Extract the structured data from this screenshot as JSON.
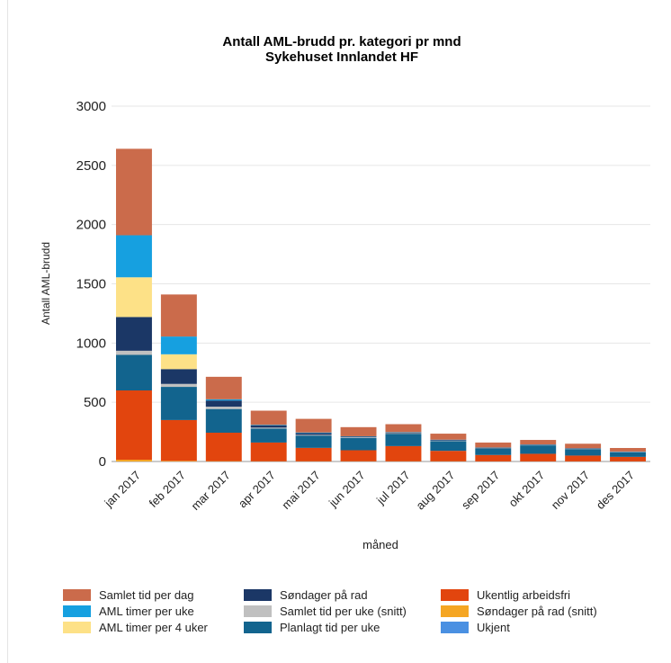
{
  "chart_data": {
    "type": "bar",
    "stacked": true,
    "title": "Antall AML-brudd pr. kategori pr mnd",
    "subtitle": "Sykehuset Innlandet HF",
    "xlabel": "måned",
    "ylabel": "Antall AML-brudd",
    "ylim": [
      0,
      3000
    ],
    "yticks": [
      "0",
      "500",
      "1000",
      "1500",
      "2000",
      "2500",
      "3000"
    ],
    "grid": true,
    "legend_position": "bottom",
    "categories": [
      "jan 2017",
      "feb 2017",
      "mar 2017",
      "apr 2017",
      "mai 2017",
      "jun 2017",
      "jul 2017",
      "aug 2017",
      "sep 2017",
      "okt 2017",
      "nov 2017",
      "des 2017"
    ],
    "series": [
      {
        "name": "Søndager på rad (snitt)",
        "color": "#f5a623",
        "values": [
          15,
          5,
          3,
          2,
          2,
          2,
          2,
          2,
          1,
          1,
          1,
          1
        ]
      },
      {
        "name": "Ukentlig arbeidsfri",
        "color": "#e2450e",
        "values": [
          585,
          345,
          240,
          158,
          113,
          93,
          128,
          88,
          54,
          64,
          49,
          38
        ]
      },
      {
        "name": "Planlagt tid per uke",
        "color": "#12648e",
        "values": [
          300,
          280,
          200,
          118,
          104,
          104,
          104,
          82,
          55,
          71,
          55,
          38
        ]
      },
      {
        "name": "Samlet tid per uke (snitt)",
        "color": "#c0c0c0",
        "values": [
          35,
          25,
          20,
          8,
          6,
          5,
          5,
          3,
          2,
          2,
          2,
          2
        ]
      },
      {
        "name": "Søndager på rad",
        "color": "#1b3766",
        "values": [
          285,
          125,
          52,
          18,
          15,
          6,
          6,
          6,
          4,
          4,
          3,
          3
        ]
      },
      {
        "name": "AML timer per 4 uker",
        "color": "#fde187",
        "values": [
          335,
          125,
          0,
          0,
          0,
          0,
          0,
          0,
          0,
          0,
          0,
          0
        ]
      },
      {
        "name": "AML timer per uke",
        "color": "#16a0e0",
        "values": [
          355,
          150,
          10,
          5,
          5,
          3,
          3,
          3,
          2,
          2,
          2,
          2
        ]
      },
      {
        "name": "Ukjent",
        "color": "#4a90e2",
        "values": [
          0,
          0,
          0,
          0,
          0,
          0,
          0,
          0,
          0,
          0,
          0,
          0
        ]
      },
      {
        "name": "Samlet tid per dag",
        "color": "#cb6b4b",
        "values": [
          730,
          355,
          190,
          120,
          115,
          77,
          67,
          51,
          42,
          38,
          38,
          30
        ]
      }
    ],
    "legend_order": [
      "Samlet tid per dag",
      "Søndager på rad",
      "Ukentlig arbeidsfri",
      "AML timer per uke",
      "Samlet tid per uke (snitt)",
      "Søndager på rad (snitt)",
      "AML timer per 4 uker",
      "Planlagt tid per uke",
      "Ukjent"
    ]
  }
}
